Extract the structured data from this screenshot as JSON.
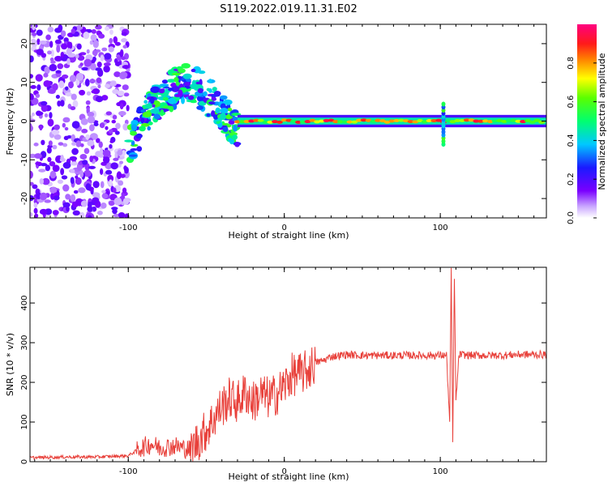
{
  "figure": {
    "title": "S119.2022.019.11.31.E02"
  },
  "colors": {
    "snr_line": "#e8403a",
    "axis": "#000000",
    "background": "#ffffff"
  },
  "chart_data": [
    {
      "type": "heatmap",
      "xlabel": "Height of straight line (km)",
      "ylabel": "Frequency (Hz)",
      "xlim": [
        -163,
        168
      ],
      "ylim": [
        -25,
        25
      ],
      "x_ticks": [
        -100,
        0,
        100
      ],
      "y_ticks": [
        -20,
        -10,
        0,
        10,
        20
      ],
      "colormap": "rainbow (white-purple-blue-cyan-green-yellow-red-magenta)",
      "colorbar": {
        "label": "Normalized spectral amplitude",
        "range": [
          0,
          1
        ],
        "ticks": [
          "0.0",
          "0.2",
          "0.4",
          "0.6",
          "0.8"
        ]
      },
      "features": [
        {
          "region": "diffuse noise",
          "x": [
            -163,
            -100
          ],
          "y": [
            -25,
            25
          ],
          "amplitude": 0.1
        },
        {
          "region": "rising band",
          "x": [
            -100,
            -30
          ],
          "y": [
            -5,
            14
          ],
          "amplitude": 0.5
        },
        {
          "region": "constant line",
          "x": [
            -30,
            168
          ],
          "y": [
            0,
            0
          ],
          "amplitude": 0.95
        },
        {
          "region": "spike",
          "x": [
            102,
            102
          ],
          "y": [
            -6,
            5
          ],
          "amplitude": 0.6
        }
      ]
    },
    {
      "type": "line",
      "xlabel": "Height of straight line (km)",
      "ylabel": "SNR (10 * v/v)",
      "xlim": [
        -163,
        168
      ],
      "ylim": [
        0,
        490
      ],
      "x_ticks": [
        -100,
        0,
        100
      ],
      "y_ticks": [
        0,
        100,
        200,
        300,
        400
      ],
      "series": [
        {
          "x": [
            -163,
            -140,
            -120,
            -100,
            -92,
            -85,
            -80,
            -70,
            -60,
            -50,
            -45,
            -40,
            -35,
            -30,
            -25,
            -20,
            -15,
            -10,
            -5,
            0,
            5,
            10,
            15,
            20,
            25,
            30,
            40,
            50,
            60,
            70,
            80,
            90,
            100,
            104,
            106,
            107,
            108,
            109,
            110,
            112,
            120,
            130,
            140,
            150,
            160,
            168
          ],
          "values": [
            10,
            12,
            12,
            15,
            35,
            45,
            35,
            40,
            30,
            80,
            110,
            140,
            160,
            150,
            175,
            150,
            170,
            160,
            170,
            190,
            220,
            220,
            230,
            250,
            255,
            265,
            270,
            268,
            268,
            268,
            268,
            268,
            268,
            268,
            100,
            480,
            50,
            470,
            150,
            270,
            268,
            268,
            268,
            270,
            270,
            270
          ]
        }
      ]
    }
  ]
}
